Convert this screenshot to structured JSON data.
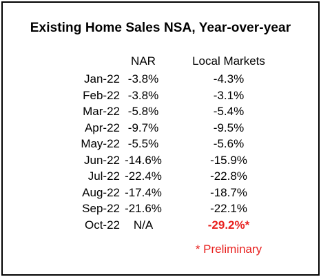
{
  "chart_data": {
    "type": "table",
    "title": "Existing Home Sales NSA, Year-over-year",
    "columns": [
      "NAR",
      "Local Markets"
    ],
    "rows": [
      {
        "month": "Jan-22",
        "nar": "-3.8%",
        "local": "-4.3%"
      },
      {
        "month": "Feb-22",
        "nar": "-3.8%",
        "local": "-3.1%"
      },
      {
        "month": "Mar-22",
        "nar": "-5.8%",
        "local": "-5.4%"
      },
      {
        "month": "Apr-22",
        "nar": "-9.7%",
        "local": "-9.5%"
      },
      {
        "month": "May-22",
        "nar": "-5.5%",
        "local": "-5.6%"
      },
      {
        "month": "Jun-22",
        "nar": "-14.6%",
        "local": "-15.9%"
      },
      {
        "month": "Jul-22",
        "nar": "-22.4%",
        "local": "-22.8%"
      },
      {
        "month": "Aug-22",
        "nar": "-17.4%",
        "local": "-18.7%"
      },
      {
        "month": "Sep-22",
        "nar": "-21.6%",
        "local": "-22.1%"
      },
      {
        "month": "Oct-22",
        "nar": "N/A",
        "local": "-29.2%*"
      }
    ],
    "footnote": "* Preliminary",
    "highlight_color": "#e8201e"
  }
}
